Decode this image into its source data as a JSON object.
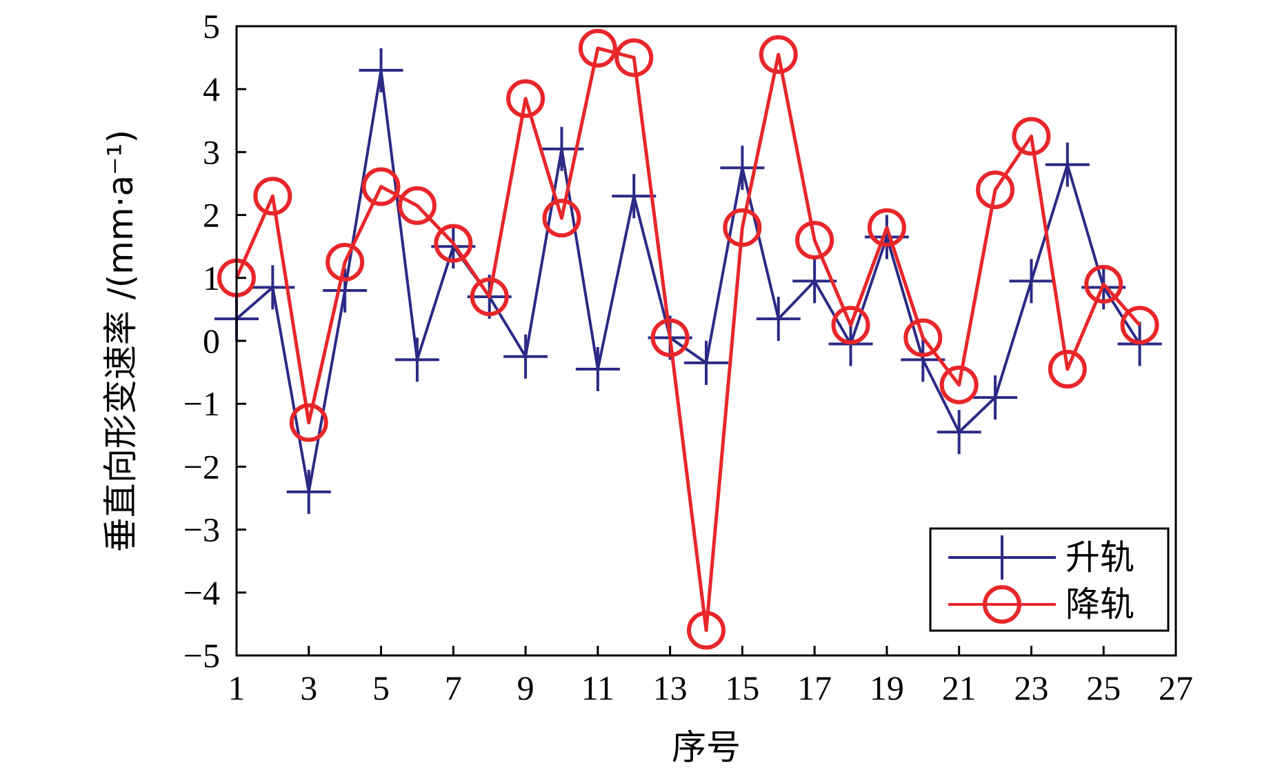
{
  "chart_data": {
    "type": "line",
    "xlabel": "序号",
    "ylabel": "垂直向形变速率 /(mm·a⁻¹)",
    "xlim": [
      1,
      27
    ],
    "ylim": [
      -5,
      5
    ],
    "xticks": [
      1,
      3,
      5,
      7,
      9,
      11,
      13,
      15,
      17,
      19,
      21,
      23,
      25,
      27
    ],
    "yticks": [
      -5,
      -4,
      -3,
      -2,
      -1,
      0,
      1,
      2,
      3,
      4,
      5
    ],
    "ytick_labels": [
      "−5",
      "−4",
      "−3",
      "−2",
      "−1",
      "0",
      "1",
      "2",
      "3",
      "4",
      "5"
    ],
    "grid": false,
    "legend_position": "bottom-right",
    "x": [
      1,
      2,
      3,
      4,
      5,
      6,
      7,
      8,
      9,
      10,
      11,
      12,
      13,
      14,
      15,
      16,
      17,
      18,
      19,
      20,
      21,
      22,
      23,
      24,
      25,
      26
    ],
    "series": [
      {
        "name": "升轨",
        "color": "#2b2a85",
        "marker": "plus",
        "values": [
          0.35,
          0.85,
          -2.4,
          0.8,
          4.3,
          -0.3,
          1.5,
          0.7,
          -0.25,
          3.05,
          -0.45,
          2.3,
          0.05,
          -0.35,
          2.75,
          0.35,
          0.95,
          -0.05,
          1.65,
          -0.3,
          -1.45,
          -0.9,
          0.95,
          2.8,
          0.85,
          -0.05
        ]
      },
      {
        "name": "降轨",
        "color": "#e8262a",
        "marker": "circle",
        "values": [
          1.0,
          2.3,
          -1.3,
          1.25,
          2.45,
          2.15,
          1.55,
          0.7,
          3.85,
          1.95,
          4.65,
          4.5,
          0.05,
          -4.6,
          1.8,
          4.55,
          1.6,
          0.25,
          1.8,
          0.05,
          -0.7,
          2.4,
          3.25,
          -0.45,
          0.9,
          0.25
        ]
      }
    ]
  }
}
